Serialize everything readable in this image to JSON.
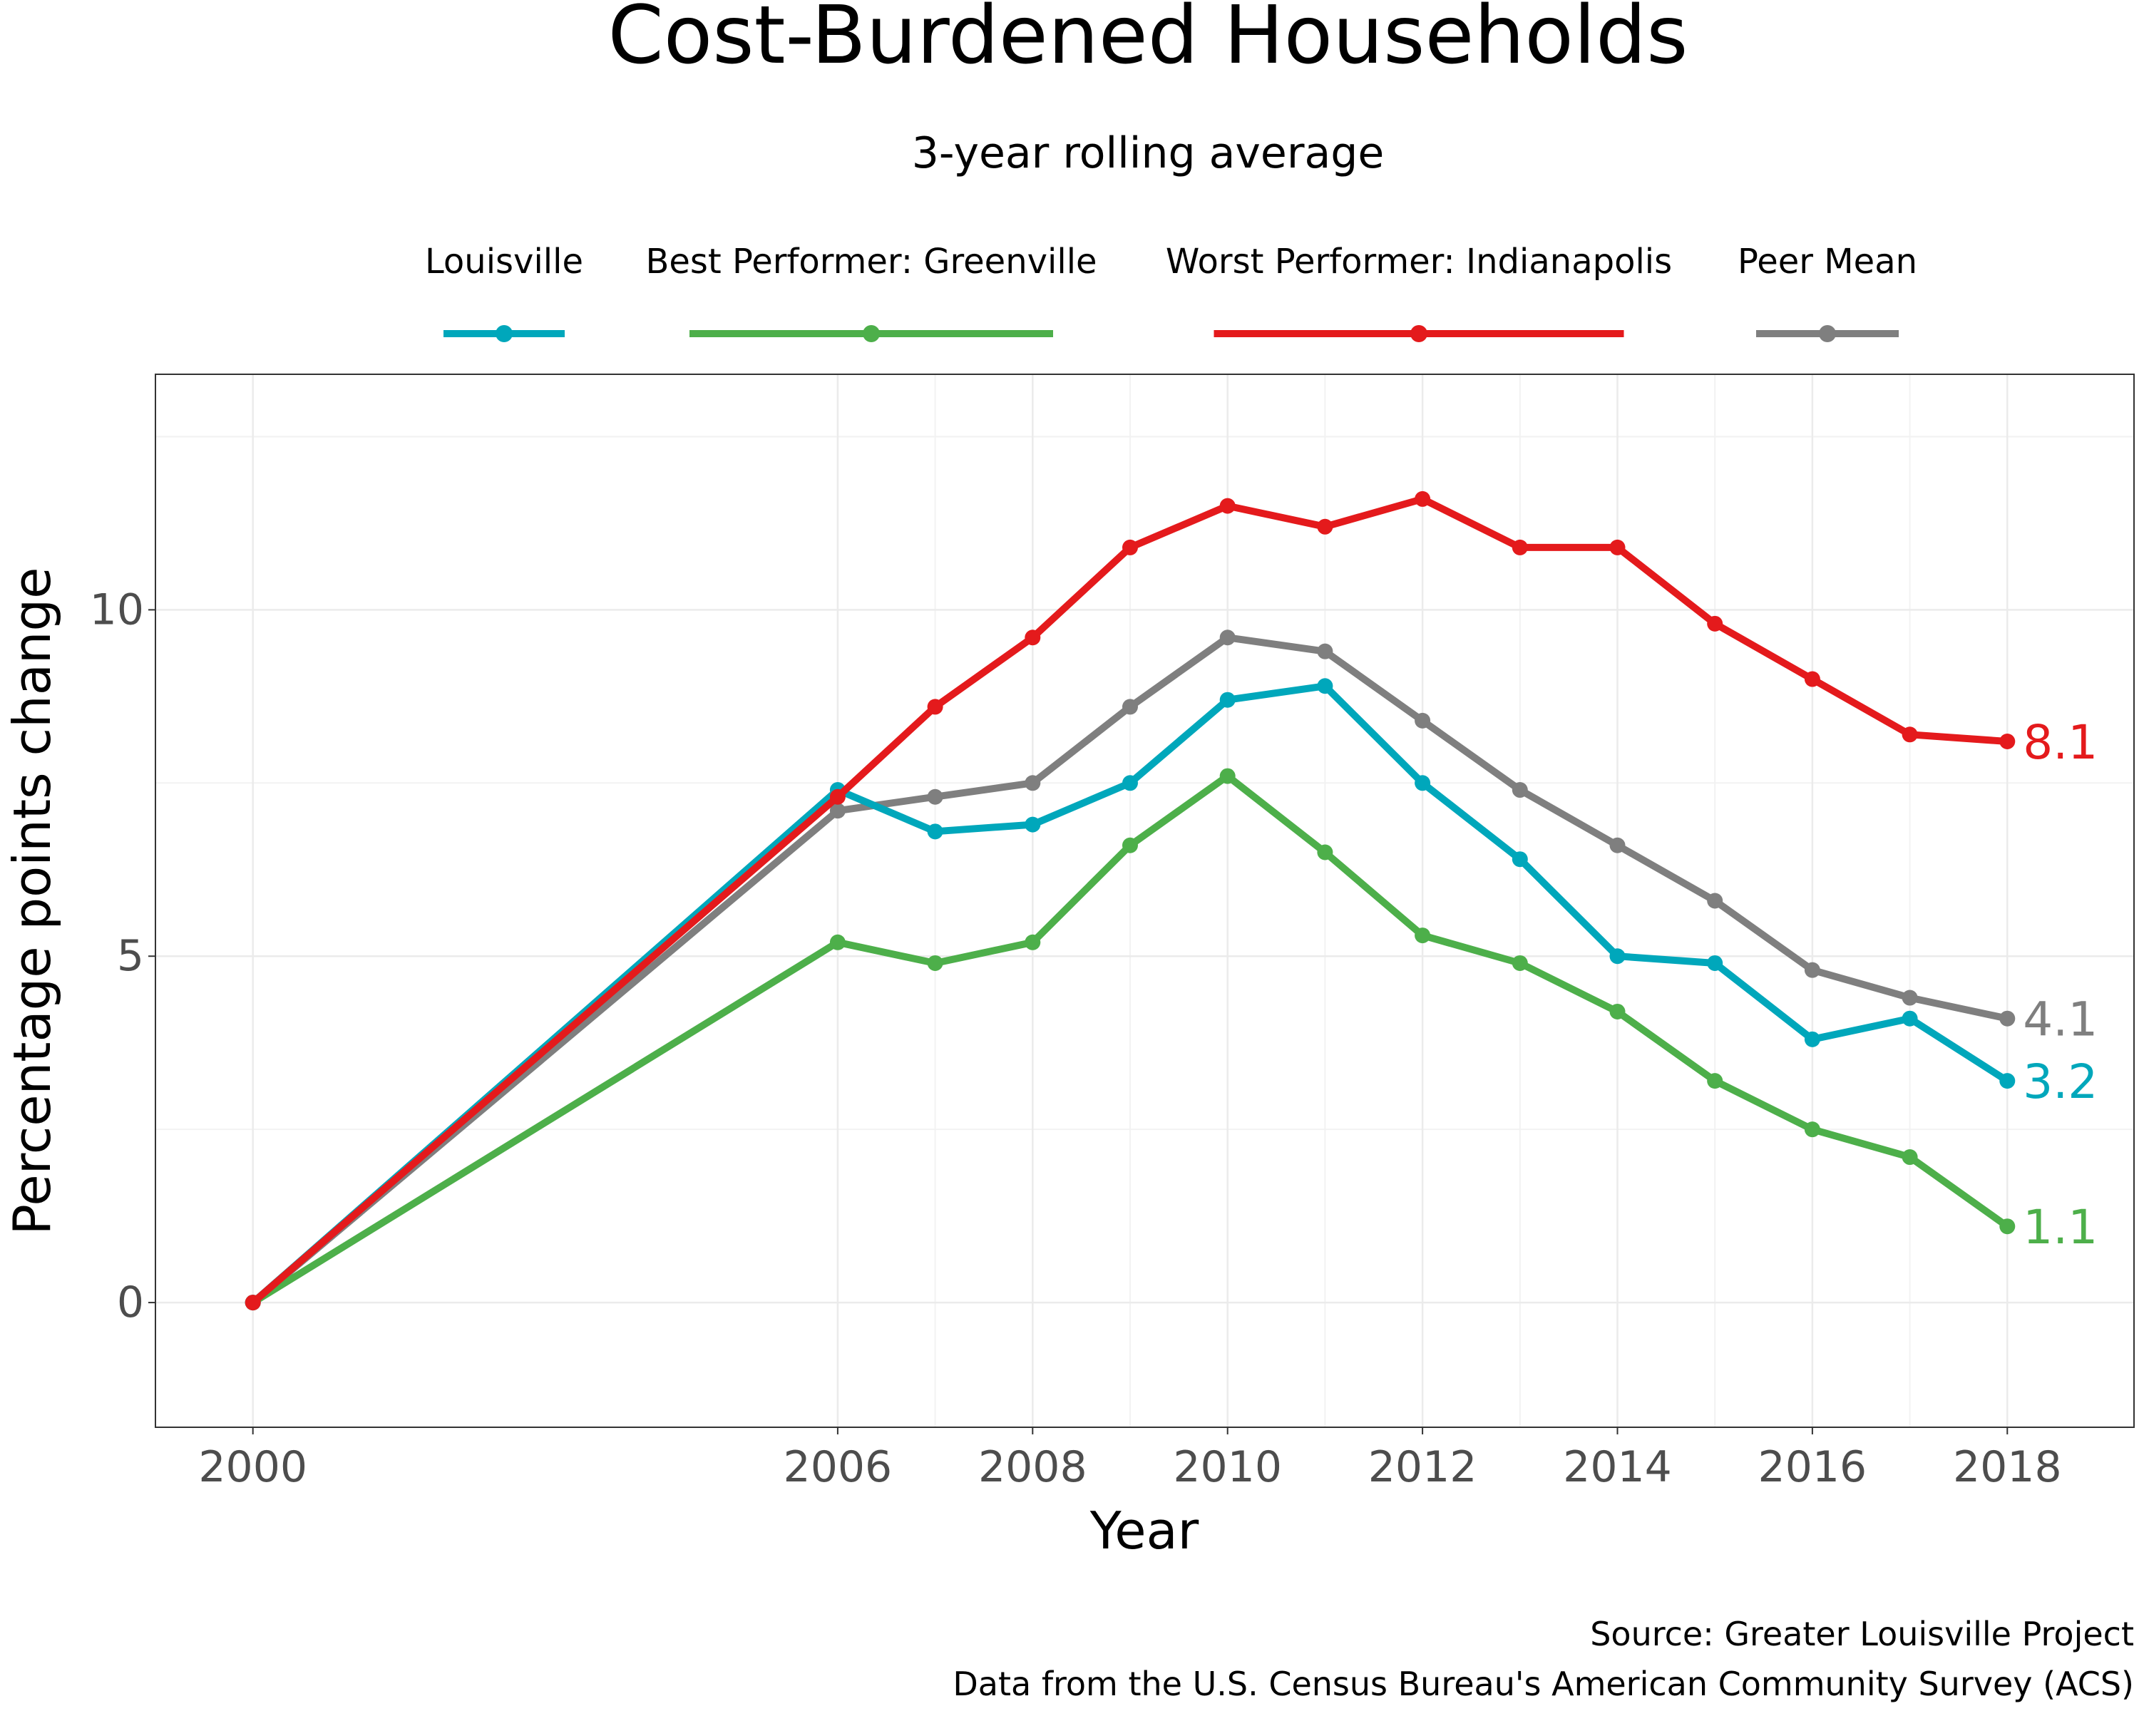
{
  "chart_data": {
    "type": "line",
    "title": "Cost-Burdened Households",
    "subtitle": "3-year rolling average",
    "xlabel": "Year",
    "ylabel": "Percentage points change",
    "x": [
      2000,
      2006,
      2007,
      2008,
      2009,
      2010,
      2011,
      2012,
      2013,
      2014,
      2015,
      2016,
      2017,
      2018
    ],
    "xlim": [
      1999,
      2019.3
    ],
    "ylim": [
      -1.8,
      13.4
    ],
    "x_ticks": [
      2000,
      2006,
      2008,
      2010,
      2012,
      2014,
      2016,
      2018
    ],
    "y_ticks": [
      0,
      5,
      10
    ],
    "grid": true,
    "legend_position": "top",
    "series": [
      {
        "name": "Louisville",
        "color": "#00A7BB",
        "values": [
          0,
          7.4,
          6.8,
          6.9,
          7.5,
          8.7,
          8.9,
          7.5,
          6.4,
          5.0,
          4.9,
          3.8,
          4.1,
          3.2
        ],
        "end_label": "3.2"
      },
      {
        "name": "Best Performer: Greenville",
        "color": "#4DAF4A",
        "values": [
          0,
          5.2,
          4.9,
          5.2,
          6.6,
          7.6,
          6.5,
          5.3,
          4.9,
          4.2,
          3.2,
          2.5,
          2.1,
          1.1
        ],
        "end_label": "1.1"
      },
      {
        "name": "Worst Performer: Indianapolis",
        "color": "#E41A1C",
        "values": [
          0,
          7.3,
          8.6,
          9.6,
          10.9,
          11.5,
          11.2,
          11.6,
          10.9,
          10.9,
          9.8,
          9.0,
          8.2,
          8.1
        ],
        "end_label": "8.1"
      },
      {
        "name": "Peer Mean",
        "color": "#7F7F7F",
        "values": [
          0,
          7.1,
          7.3,
          7.5,
          8.6,
          9.6,
          9.4,
          8.4,
          7.4,
          6.6,
          5.8,
          4.8,
          4.4,
          4.1
        ],
        "end_label": "4.1"
      }
    ],
    "draw_order": [
      3,
      1,
      0,
      2
    ],
    "source_lines": [
      "Source: Greater Louisville Project",
      "Data from the U.S. Census Bureau's American Community Survey (ACS)"
    ]
  }
}
